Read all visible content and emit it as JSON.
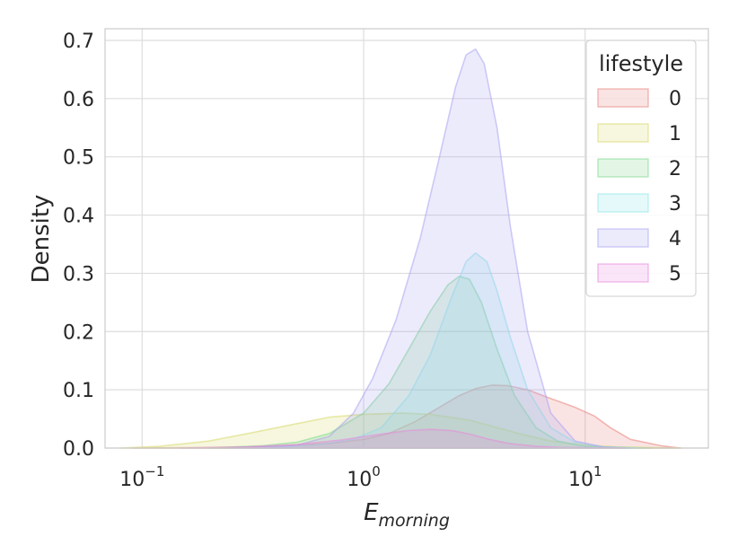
{
  "chart_data": {
    "type": "area",
    "xscale": "log",
    "xlim": [
      0.068,
      36
    ],
    "ylim": [
      0,
      0.72
    ],
    "xlabel_base": "E",
    "xlabel_sub": "morning",
    "ylabel": "Density",
    "x_ticks": [
      {
        "value": 0.1,
        "base": "10",
        "exp": "−1"
      },
      {
        "value": 1,
        "base": "10",
        "exp": "0"
      },
      {
        "value": 10,
        "base": "10",
        "exp": "1"
      }
    ],
    "y_ticks": [
      {
        "value": 0,
        "label": "0.0"
      },
      {
        "value": 0.1,
        "label": "0.1"
      },
      {
        "value": 0.2,
        "label": "0.2"
      },
      {
        "value": 0.3,
        "label": "0.3"
      },
      {
        "value": 0.4,
        "label": "0.4"
      },
      {
        "value": 0.5,
        "label": "0.5"
      },
      {
        "value": 0.6,
        "label": "0.6"
      },
      {
        "value": 0.7,
        "label": "0.7"
      }
    ],
    "grid": true,
    "legend": {
      "title": "lifestyle",
      "placement": "top-right"
    },
    "series": [
      {
        "name": "0",
        "color": "#e8837e",
        "x": [
          0.09,
          0.2,
          0.4,
          0.7,
          1,
          1.3,
          1.7,
          2.2,
          2.7,
          3.2,
          3.8,
          4.5,
          5.5,
          7,
          9,
          11,
          13,
          16,
          22,
          27
        ],
        "y": [
          0,
          0.001,
          0.003,
          0.008,
          0.015,
          0.025,
          0.045,
          0.07,
          0.09,
          0.102,
          0.108,
          0.107,
          0.1,
          0.085,
          0.07,
          0.055,
          0.035,
          0.015,
          0.004,
          0
        ]
      },
      {
        "name": "1",
        "color": "#d7d96a",
        "x": [
          0.08,
          0.12,
          0.2,
          0.3,
          0.5,
          0.7,
          1,
          1.5,
          2,
          3,
          4,
          5,
          7,
          10,
          14,
          20,
          27
        ],
        "y": [
          0,
          0.003,
          0.012,
          0.025,
          0.042,
          0.053,
          0.058,
          0.06,
          0.058,
          0.048,
          0.035,
          0.025,
          0.012,
          0.005,
          0.002,
          0.001,
          0
        ]
      },
      {
        "name": "2",
        "color": "#7ed88f",
        "x": [
          0.2,
          0.35,
          0.5,
          0.7,
          1,
          1.3,
          1.6,
          2,
          2.4,
          2.7,
          3,
          3.4,
          4,
          4.8,
          6,
          7.5,
          10,
          14,
          20
        ],
        "y": [
          0,
          0.004,
          0.01,
          0.025,
          0.06,
          0.11,
          0.17,
          0.235,
          0.28,
          0.295,
          0.29,
          0.25,
          0.17,
          0.09,
          0.035,
          0.012,
          0.003,
          0.001,
          0
        ]
      },
      {
        "name": "3",
        "color": "#8ee5e6",
        "x": [
          0.3,
          0.6,
          0.9,
          1.2,
          1.6,
          2,
          2.5,
          2.9,
          3.2,
          3.6,
          4,
          4.6,
          5.5,
          7,
          9,
          12,
          18
        ],
        "y": [
          0,
          0.005,
          0.015,
          0.035,
          0.09,
          0.16,
          0.26,
          0.32,
          0.335,
          0.32,
          0.27,
          0.19,
          0.1,
          0.035,
          0.01,
          0.002,
          0
        ]
      },
      {
        "name": "4",
        "color": "#a9a4f0",
        "x": [
          0.25,
          0.5,
          0.7,
          0.9,
          1.1,
          1.4,
          1.8,
          2.2,
          2.6,
          2.9,
          3.2,
          3.5,
          4,
          4.6,
          5.5,
          7,
          9,
          12,
          16
        ],
        "y": [
          0,
          0.005,
          0.02,
          0.06,
          0.12,
          0.22,
          0.36,
          0.5,
          0.62,
          0.675,
          0.685,
          0.66,
          0.55,
          0.38,
          0.2,
          0.06,
          0.012,
          0.002,
          0
        ]
      },
      {
        "name": "5",
        "color": "#e889dd",
        "x": [
          0.15,
          0.3,
          0.5,
          0.8,
          1.2,
          1.6,
          2,
          2.5,
          3,
          3.6,
          4.5,
          6,
          8,
          11,
          15
        ],
        "y": [
          0,
          0.002,
          0.006,
          0.014,
          0.024,
          0.03,
          0.032,
          0.03,
          0.024,
          0.016,
          0.008,
          0.003,
          0.001,
          0.0005,
          0
        ]
      }
    ]
  }
}
